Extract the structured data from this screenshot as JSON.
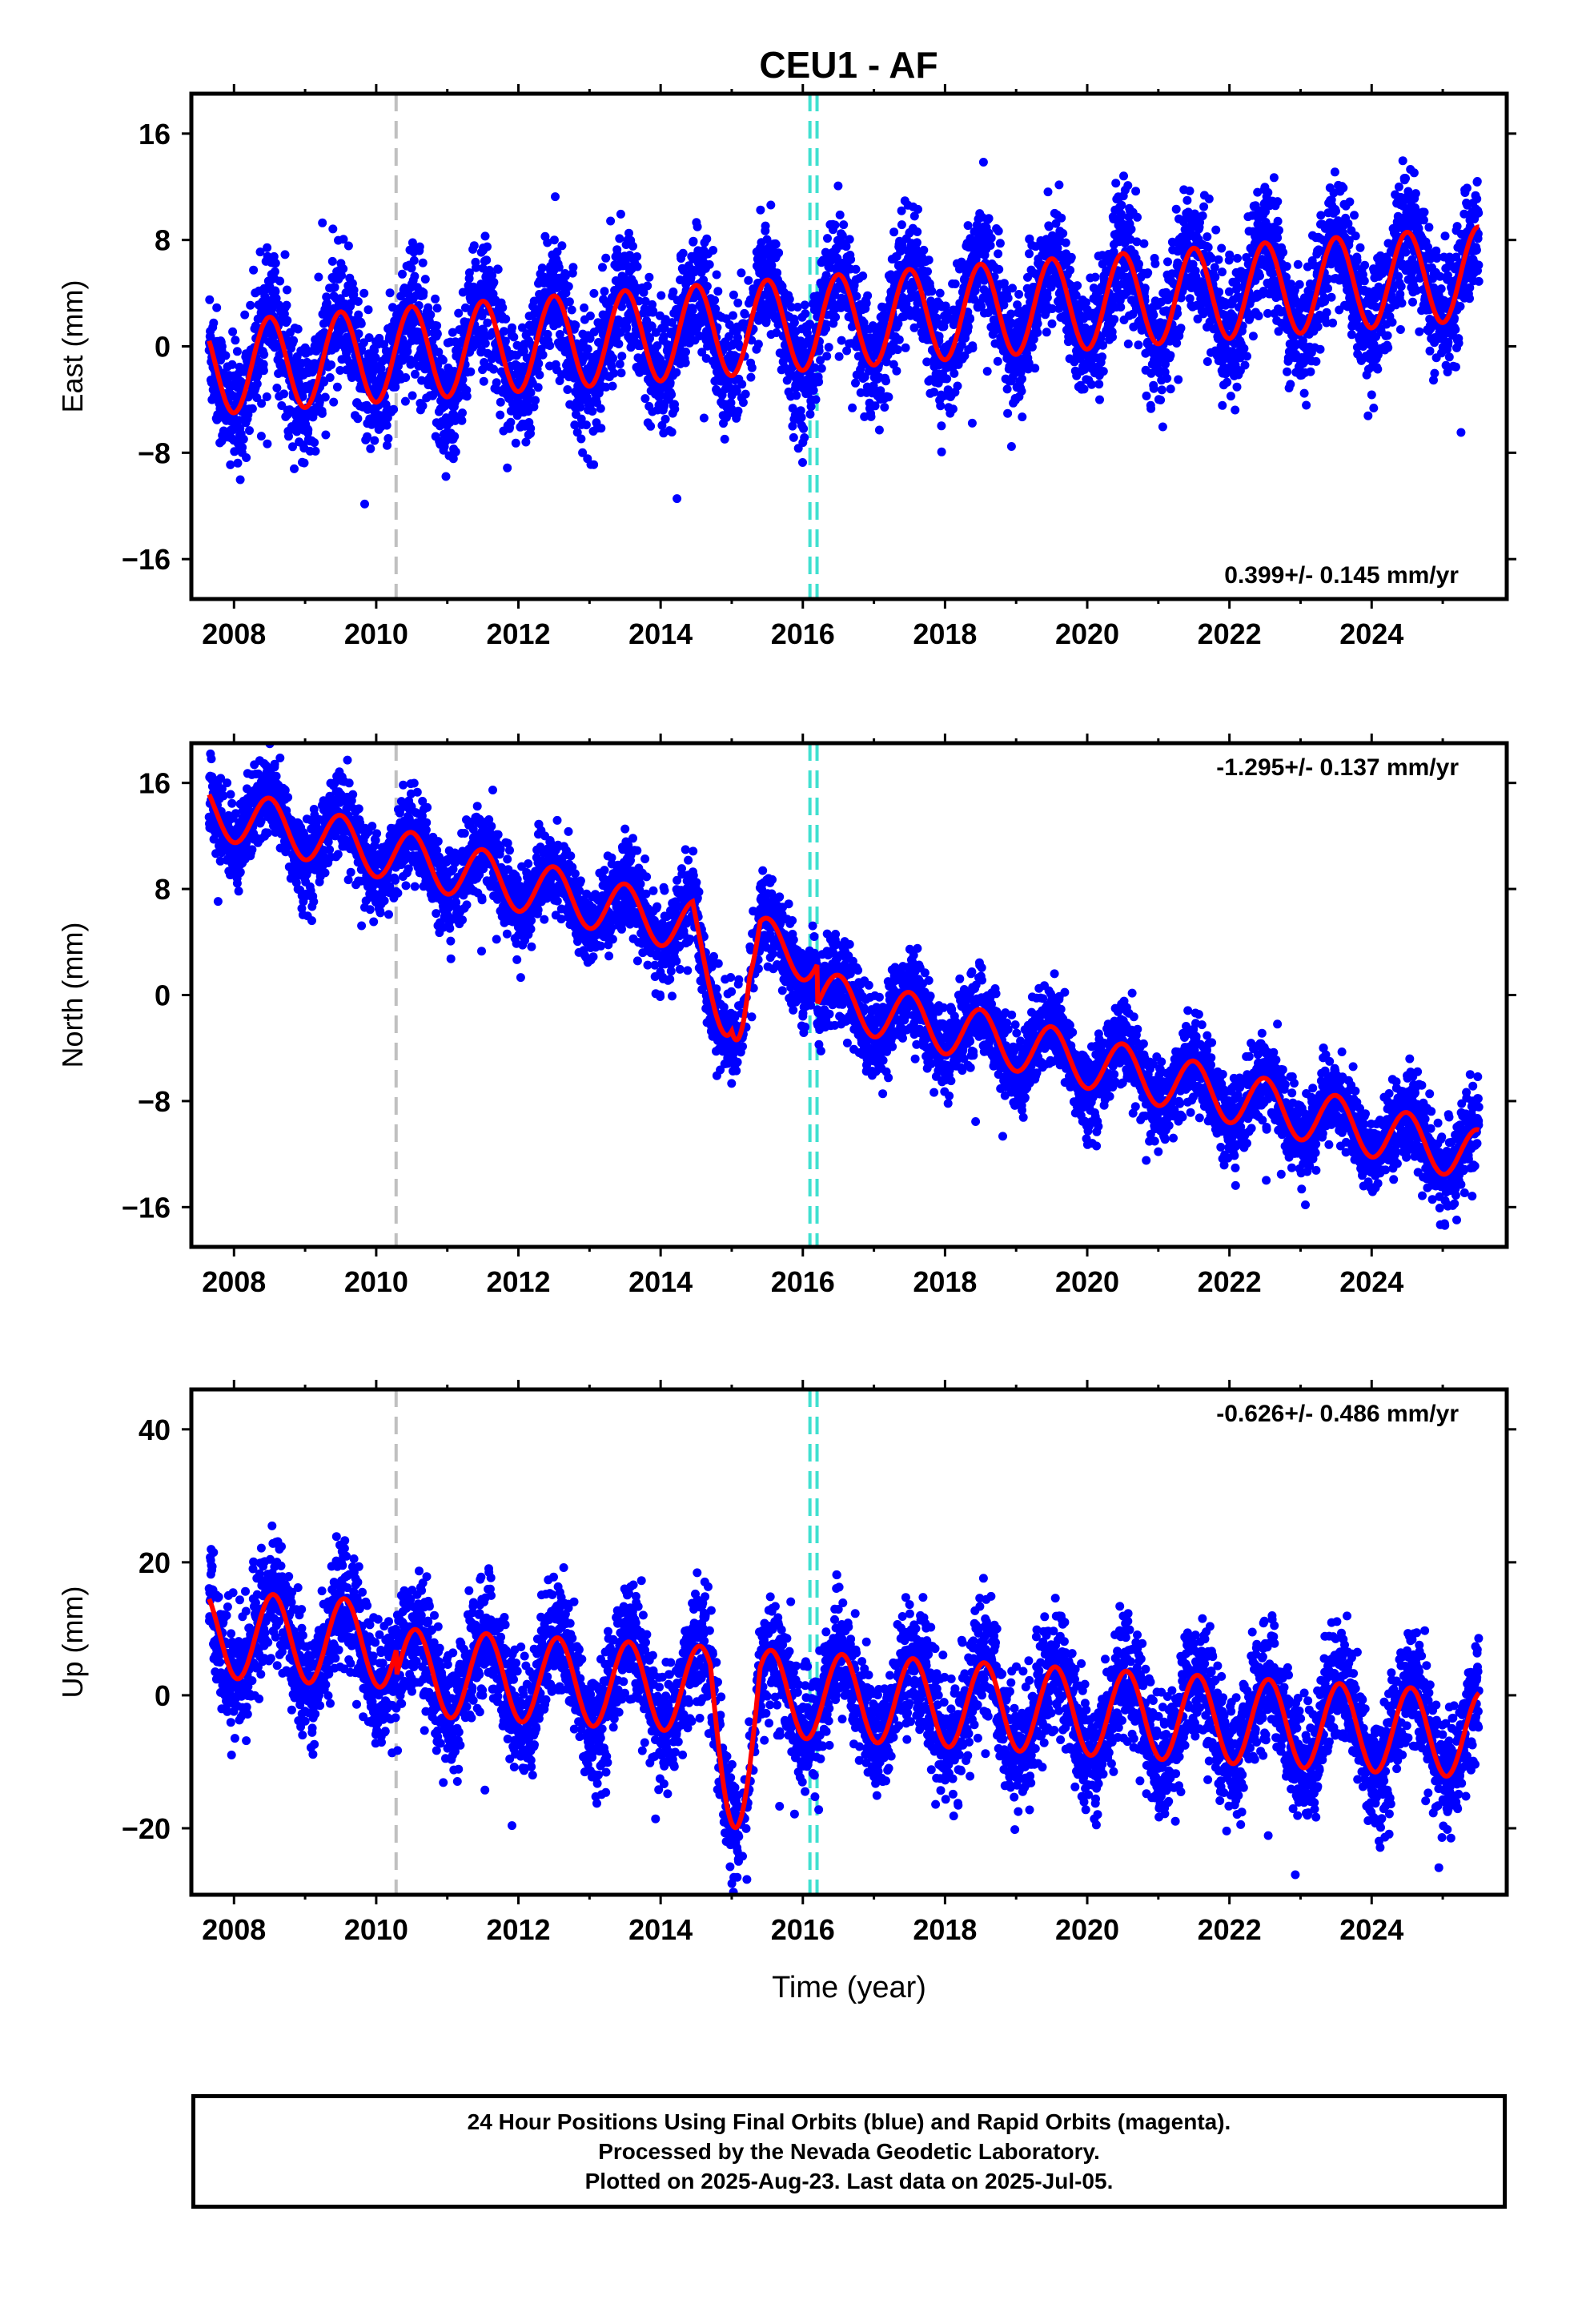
{
  "title": "CEU1 - AF",
  "colors": {
    "observations": "#0000ff",
    "model": "#ff0000",
    "equipment_change": "#c0c0c0",
    "other_event": "#40e0d0"
  },
  "chart_data": [
    {
      "type": "scatter",
      "component": "east",
      "ylabel": "East (mm)",
      "xlabel": "",
      "xlim": [
        2007.4,
        2025.9
      ],
      "ylim": [
        -19,
        19
      ],
      "xticks": [
        2008,
        2010,
        2012,
        2014,
        2016,
        2018,
        2020,
        2022,
        2024
      ],
      "xticklabels": [
        "2008",
        "2010",
        "2012",
        "2014",
        "2016",
        "2018",
        "2020",
        "2022",
        "2024"
      ],
      "yticks": [
        16,
        8,
        0,
        -8,
        -16
      ],
      "yticklabels": [
        "16",
        "8",
        "0",
        "−8",
        "−16"
      ],
      "rate_label": "0.399+/- 0.145 mm/yr",
      "rate_position": "bottom-right",
      "data_span": [
        2007.65,
        2025.51
      ],
      "trend": {
        "intercept_2008": -1.5,
        "rate_mm_per_yr": 0.399
      },
      "seasonal_amplitude": 3.5,
      "seasonal_phase_peak_year_fraction": 0.5,
      "scatter_sigma": 2.3,
      "offsets": [],
      "anomalies": [],
      "events": [
        {
          "x": 2010.28,
          "kind": "equipment_change"
        },
        {
          "x": 2016.1,
          "kind": "other_event"
        },
        {
          "x": 2016.2,
          "kind": "other_event"
        }
      ]
    },
    {
      "type": "scatter",
      "component": "north",
      "ylabel": "North (mm)",
      "xlabel": "",
      "xlim": [
        2007.4,
        2025.9
      ],
      "ylim": [
        -19,
        19
      ],
      "xticks": [
        2008,
        2010,
        2012,
        2014,
        2016,
        2018,
        2020,
        2022,
        2024
      ],
      "xticklabels": [
        "2008",
        "2010",
        "2012",
        "2014",
        "2016",
        "2018",
        "2020",
        "2022",
        "2024"
      ],
      "yticks": [
        16,
        8,
        0,
        -8,
        -16
      ],
      "yticklabels": [
        "16",
        "8",
        "0",
        "−8",
        "−16"
      ],
      "rate_label": "-1.295+/- 0.137 mm/yr",
      "rate_position": "top-right",
      "data_span": [
        2007.65,
        2025.51
      ],
      "trend": {
        "intercept_2008": 13.5,
        "rate_mm_per_yr": -1.295
      },
      "seasonal_amplitude": 2.0,
      "seasonal_phase_peak_year_fraction": 0.5,
      "scatter_sigma": 1.6,
      "offsets": [
        {
          "x": 2016.2,
          "dy": -3.0
        }
      ],
      "anomalies": [
        {
          "x": 2014.85,
          "width": 0.4,
          "dy": -6.0
        },
        {
          "x": 2015.2,
          "width": 0.2,
          "dy": -3.0
        }
      ],
      "events": [
        {
          "x": 2010.28,
          "kind": "equipment_change"
        },
        {
          "x": 2016.1,
          "kind": "other_event"
        },
        {
          "x": 2016.2,
          "kind": "other_event"
        }
      ]
    },
    {
      "type": "scatter",
      "component": "up",
      "ylabel": "Up (mm)",
      "xlabel": "Time (year)",
      "xlim": [
        2007.4,
        2025.9
      ],
      "ylim": [
        -30,
        46
      ],
      "xticks": [
        2008,
        2010,
        2012,
        2014,
        2016,
        2018,
        2020,
        2022,
        2024
      ],
      "xticklabels": [
        "2008",
        "2010",
        "2012",
        "2014",
        "2016",
        "2018",
        "2020",
        "2022",
        "2024"
      ],
      "yticks": [
        40,
        20,
        0,
        -20
      ],
      "yticklabels": [
        "40",
        "20",
        "0",
        "−20"
      ],
      "rate_label": "-0.626+/- 0.486 mm/yr",
      "rate_position": "top-right",
      "data_span": [
        2007.65,
        2025.51
      ],
      "trend": {
        "intercept_2008": 9.0,
        "rate_mm_per_yr": -0.626
      },
      "seasonal_amplitude": 6.5,
      "seasonal_phase_peak_year_fraction": 0.55,
      "scatter_sigma": 4.5,
      "offsets": [
        {
          "x": 2010.28,
          "dy": -4.0
        }
      ],
      "anomalies": [
        {
          "x": 2015.05,
          "width": 0.35,
          "dy": -14.0
        }
      ],
      "events": [
        {
          "x": 2010.28,
          "kind": "equipment_change"
        },
        {
          "x": 2016.1,
          "kind": "other_event"
        },
        {
          "x": 2016.2,
          "kind": "other_event"
        }
      ]
    }
  ],
  "footer": {
    "line1": "24 Hour Positions Using Final Orbits (blue) and Rapid Orbits (magenta).",
    "line2": "Processed by the Nevada Geodetic Laboratory.",
    "line3": "Plotted on 2025-Aug-23. Last data on 2025-Jul-05."
  }
}
